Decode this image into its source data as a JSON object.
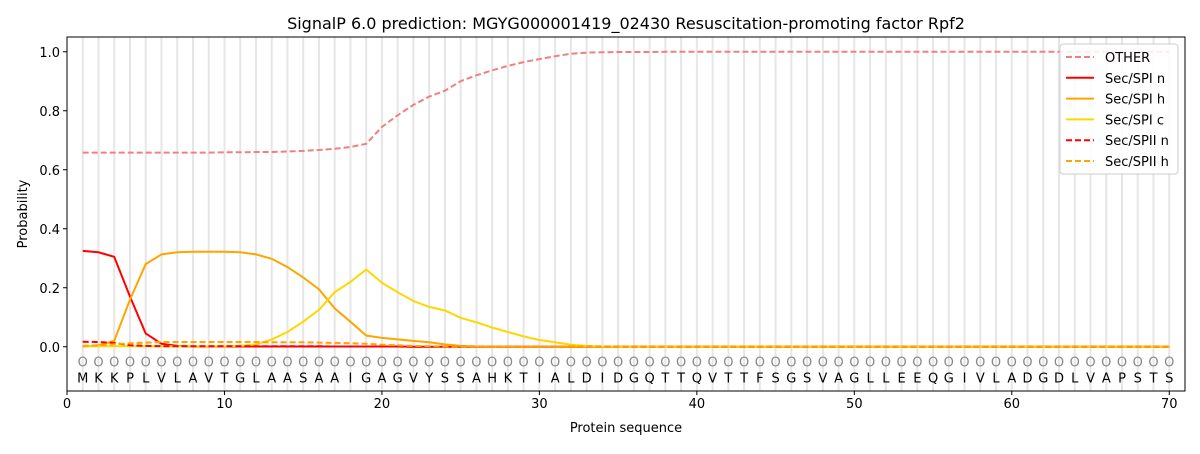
{
  "chart_data": {
    "type": "line",
    "title": "SignalP 6.0 prediction: MGYG000001419_02430 Resuscitation-promoting factor Rpf2",
    "xlabel": "Protein sequence",
    "ylabel": "Probability",
    "xlim": [
      0,
      71
    ],
    "ylim": [
      -0.15,
      1.05
    ],
    "xticks": [
      0,
      10,
      20,
      30,
      40,
      50,
      60,
      70
    ],
    "yticks": [
      "0.0",
      "0.2",
      "0.4",
      "0.6",
      "0.8",
      "1.0"
    ],
    "legend_position": "top-right",
    "sequence": [
      "M",
      "K",
      "K",
      "P",
      "L",
      "V",
      "L",
      "A",
      "V",
      "T",
      "G",
      "L",
      "A",
      "A",
      "S",
      "A",
      "A",
      "I",
      "G",
      "A",
      "G",
      "V",
      "Y",
      "S",
      "S",
      "A",
      "H",
      "K",
      "T",
      "I",
      "A",
      "L",
      "D",
      "I",
      "D",
      "G",
      "Q",
      "T",
      "T",
      "Q",
      "V",
      "T",
      "T",
      "F",
      "S",
      "G",
      "S",
      "V",
      "A",
      "G",
      "L",
      "L",
      "E",
      "E",
      "Q",
      "G",
      "I",
      "V",
      "L",
      "A",
      "D",
      "G",
      "D",
      "L",
      "V",
      "A",
      "P",
      "S",
      "T",
      "S"
    ],
    "position_marker": "O",
    "series": [
      {
        "name": "OTHER",
        "color": "#f08080",
        "dash": true,
        "values": [
          0.658,
          0.658,
          0.658,
          0.658,
          0.658,
          0.658,
          0.658,
          0.658,
          0.658,
          0.659,
          0.659,
          0.66,
          0.66,
          0.662,
          0.664,
          0.667,
          0.671,
          0.677,
          0.688,
          0.745,
          0.785,
          0.82,
          0.848,
          0.868,
          0.9,
          0.92,
          0.937,
          0.952,
          0.965,
          0.975,
          0.985,
          0.993,
          0.997,
          0.998,
          0.999,
          0.999,
          0.999,
          1,
          1,
          1,
          1,
          1,
          1,
          1,
          1,
          1,
          1,
          1,
          1,
          1,
          1,
          1,
          1,
          1,
          1,
          1,
          1,
          1,
          1,
          1,
          1,
          1,
          1,
          1,
          1,
          1,
          1,
          1,
          1,
          1
        ]
      },
      {
        "name": "Sec/SPI n",
        "color": "#ff0000",
        "dash": false,
        "values": [
          0.325,
          0.32,
          0.305,
          0.17,
          0.045,
          0.01,
          0.003,
          0.001,
          0.001,
          0.001,
          0.001,
          0.001,
          0.001,
          0.001,
          0.001,
          0.001,
          0.001,
          0.001,
          0.001,
          0.001,
          0.001,
          0,
          0,
          0,
          0,
          0,
          0,
          0,
          0,
          0,
          0,
          0,
          0,
          0,
          0,
          0,
          0,
          0,
          0,
          0,
          0,
          0,
          0,
          0,
          0,
          0,
          0,
          0,
          0,
          0,
          0,
          0,
          0,
          0,
          0,
          0,
          0,
          0,
          0,
          0,
          0,
          0,
          0,
          0,
          0,
          0,
          0,
          0,
          0,
          0
        ]
      },
      {
        "name": "Sec/SPI h",
        "color": "#ffa500",
        "dash": false,
        "values": [
          0,
          0.005,
          0.02,
          0.16,
          0.28,
          0.313,
          0.32,
          0.322,
          0.322,
          0.322,
          0.32,
          0.313,
          0.298,
          0.27,
          0.235,
          0.195,
          0.13,
          0.085,
          0.038,
          0.03,
          0.025,
          0.02,
          0.015,
          0.008,
          0.003,
          0.001,
          0,
          0,
          0,
          0,
          0,
          0,
          0,
          0,
          0,
          0,
          0,
          0,
          0,
          0,
          0,
          0,
          0,
          0,
          0,
          0,
          0,
          0,
          0,
          0,
          0,
          0,
          0,
          0,
          0,
          0,
          0,
          0,
          0,
          0,
          0,
          0,
          0,
          0,
          0,
          0,
          0,
          0,
          0,
          0
        ]
      },
      {
        "name": "Sec/SPI c",
        "color": "#ffd700",
        "dash": false,
        "values": [
          0.002,
          0.002,
          0.002,
          0.002,
          0.002,
          0.002,
          0.002,
          0.002,
          0.002,
          0.002,
          0.003,
          0.008,
          0.025,
          0.05,
          0.085,
          0.125,
          0.185,
          0.22,
          0.262,
          0.217,
          0.185,
          0.155,
          0.135,
          0.123,
          0.098,
          0.083,
          0.065,
          0.05,
          0.035,
          0.023,
          0.015,
          0.007,
          0.003,
          0.001,
          0,
          0,
          0,
          0,
          0,
          0,
          0,
          0,
          0,
          0,
          0,
          0,
          0,
          0,
          0,
          0,
          0,
          0,
          0,
          0,
          0,
          0,
          0,
          0,
          0,
          0,
          0,
          0,
          0,
          0,
          0,
          0,
          0,
          0,
          0,
          0
        ]
      },
      {
        "name": "Sec/SPII n",
        "color": "#ff0000",
        "dash": true,
        "values": [
          0.017,
          0.016,
          0.013,
          0.005,
          0.003,
          0.002,
          0.002,
          0.002,
          0.002,
          0.002,
          0.002,
          0.002,
          0.002,
          0.002,
          0.002,
          0.002,
          0.001,
          0.001,
          0.001,
          0.001,
          0.001,
          0,
          0,
          0,
          0,
          0,
          0,
          0,
          0,
          0,
          0,
          0,
          0,
          0,
          0,
          0,
          0,
          0,
          0,
          0,
          0,
          0,
          0,
          0,
          0,
          0,
          0,
          0,
          0,
          0,
          0,
          0,
          0,
          0,
          0,
          0,
          0,
          0,
          0,
          0,
          0,
          0,
          0,
          0,
          0,
          0,
          0,
          0,
          0,
          0
        ]
      },
      {
        "name": "Sec/SPII h",
        "color": "#ffa500",
        "dash": true,
        "values": [
          0.003,
          0.005,
          0.008,
          0.012,
          0.014,
          0.016,
          0.016,
          0.016,
          0.016,
          0.016,
          0.016,
          0.016,
          0.015,
          0.015,
          0.015,
          0.014,
          0.013,
          0.012,
          0.01,
          0.007,
          0.005,
          0.003,
          0.002,
          0.001,
          0,
          0,
          0,
          0,
          0,
          0,
          0,
          0,
          0,
          0,
          0,
          0,
          0,
          0,
          0,
          0,
          0,
          0,
          0,
          0,
          0,
          0,
          0,
          0,
          0,
          0,
          0,
          0,
          0,
          0,
          0,
          0,
          0,
          0,
          0,
          0,
          0,
          0,
          0,
          0,
          0,
          0,
          0,
          0,
          0,
          0
        ]
      }
    ]
  }
}
